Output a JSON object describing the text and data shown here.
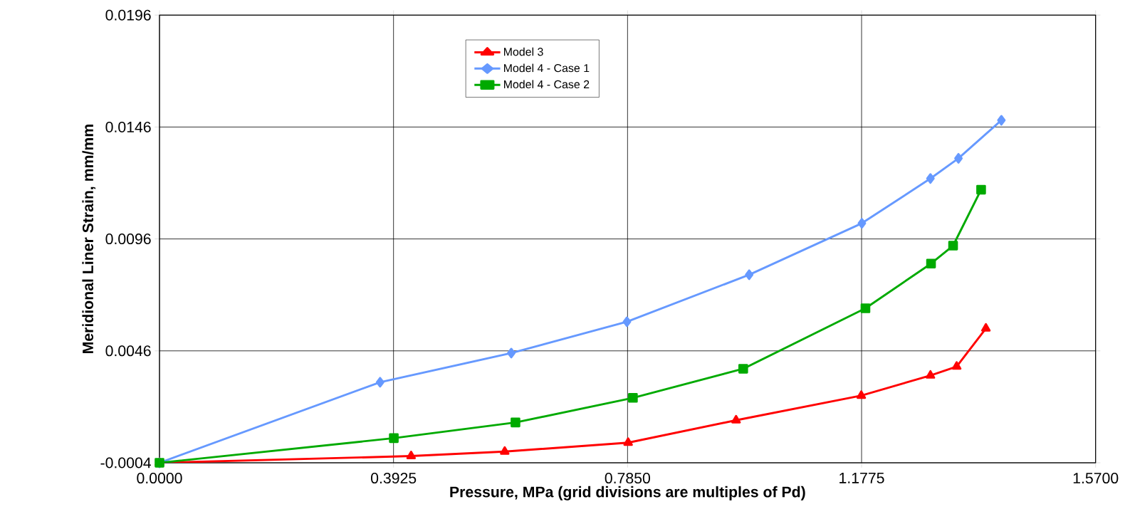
{
  "chart_data": {
    "type": "line",
    "xlabel": "Pressure, MPa (grid divisions are multiples of Pd)",
    "ylabel": "Meridional Liner Strain, mm/mm",
    "xlim": [
      0,
      1.57
    ],
    "ylim": [
      -0.0004,
      0.0196
    ],
    "xticks": [
      {
        "value": 0,
        "label": "0.0000"
      },
      {
        "value": 0.3925,
        "label": "0.3925"
      },
      {
        "value": 0.785,
        "label": "0.7850"
      },
      {
        "value": 1.1775,
        "label": "1.1775"
      },
      {
        "value": 1.57,
        "label": "1.5700"
      }
    ],
    "yticks": [
      {
        "value": -0.0004,
        "label": "-0.0004"
      },
      {
        "value": 0.0046,
        "label": "0.0046"
      },
      {
        "value": 0.0096,
        "label": "0.0096"
      },
      {
        "value": 0.0146,
        "label": "0.0146"
      },
      {
        "value": 0.0196,
        "label": "0.0196"
      }
    ],
    "grid": true,
    "legend": "top",
    "line_style": "solid",
    "series": [
      {
        "name": "Model 3",
        "color": "#ff0000",
        "marker": "triangle",
        "x": [
          0,
          0.422,
          0.579,
          0.786,
          0.967,
          1.177,
          1.293,
          1.337,
          1.386
        ],
        "values": [
          -0.0004,
          -0.0001,
          0.0001,
          0.0005,
          0.0015,
          0.0026,
          0.0035,
          0.0039,
          0.0056
        ]
      },
      {
        "name": "Model 4 - Case 1",
        "color": "#6699ff",
        "marker": "diamond",
        "x": [
          0,
          0.37,
          0.59,
          0.784,
          0.989,
          1.178,
          1.293,
          1.34,
          1.412
        ],
        "values": [
          -0.0004,
          0.0032,
          0.0045,
          0.0059,
          0.008,
          0.0103,
          0.0123,
          0.0132,
          0.0149
        ]
      },
      {
        "name": "Model 4 - Case 2",
        "color": "#00aa00",
        "marker": "square",
        "x": [
          0,
          0.393,
          0.597,
          0.794,
          0.979,
          1.184,
          1.294,
          1.331,
          1.378
        ],
        "values": [
          -0.0004,
          0.0007,
          0.0014,
          0.0025,
          0.0038,
          0.0065,
          0.0085,
          0.0093,
          0.0118
        ]
      }
    ]
  }
}
